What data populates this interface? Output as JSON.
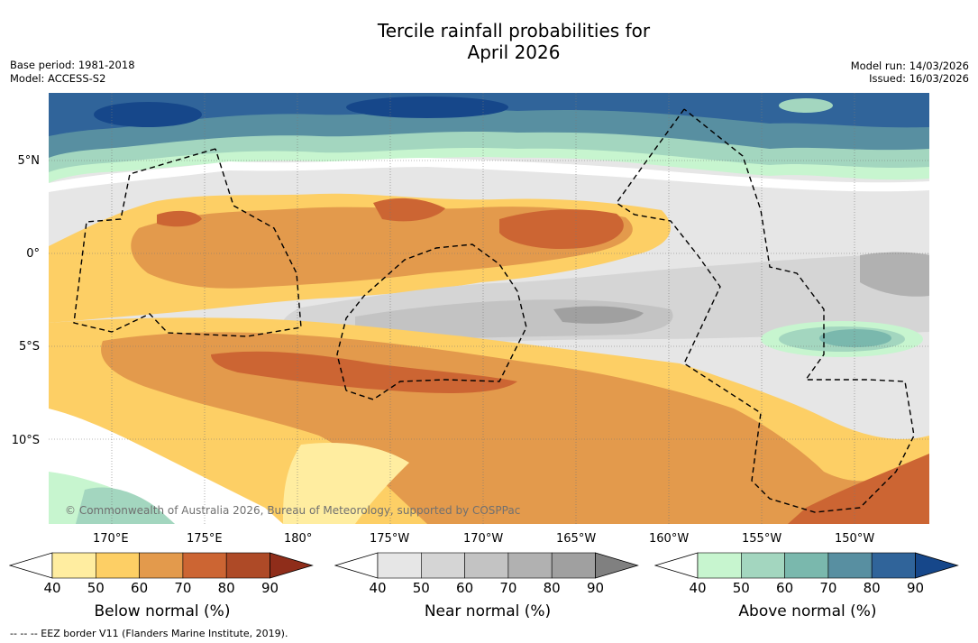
{
  "title": {
    "line1": "Tercile rainfall probabilities for",
    "line2": "April 2026"
  },
  "meta_left": {
    "base_period": "Base period: 1981-2018",
    "model": "Model: ACCESS-S2"
  },
  "meta_right": {
    "model_run": "Model run: 14/03/2026",
    "issued": "Issued: 16/03/2026"
  },
  "map": {
    "lat_ticks": [
      "5°N",
      "0°",
      "5°S",
      "10°S"
    ],
    "lon_ticks": [
      "170°E",
      "175°E",
      "180°",
      "175°W",
      "170°W",
      "165°W",
      "160°W",
      "155°W",
      "150°W"
    ],
    "copyright": "© Commonwealth of Australia 2026, Bureau of Meteorology, supported by COSPPac"
  },
  "colorbars": {
    "ticks": [
      "40",
      "50",
      "60",
      "70",
      "80",
      "90"
    ],
    "below": {
      "label": "Below normal (%)",
      "colors": [
        "#ffffff",
        "#ffeda0",
        "#fdcf65",
        "#e39a4c",
        "#cc6533",
        "#ae4a27",
        "#8f2d1a"
      ]
    },
    "near": {
      "label": "Near normal (%)",
      "colors": [
        "#ffffff",
        "#e6e6e6",
        "#d5d5d5",
        "#c3c3c3",
        "#b1b1b1",
        "#a0a0a0",
        "#808080"
      ]
    },
    "above": {
      "label": "Above normal (%)",
      "colors": [
        "#ffffff",
        "#c7f5cf",
        "#a3d6bf",
        "#7ab8ad",
        "#588fa1",
        "#30649a",
        "#16478a"
      ]
    }
  },
  "footnote": "--  --  -- EEZ border V11 (Flanders Marine Institute, 2019)."
}
